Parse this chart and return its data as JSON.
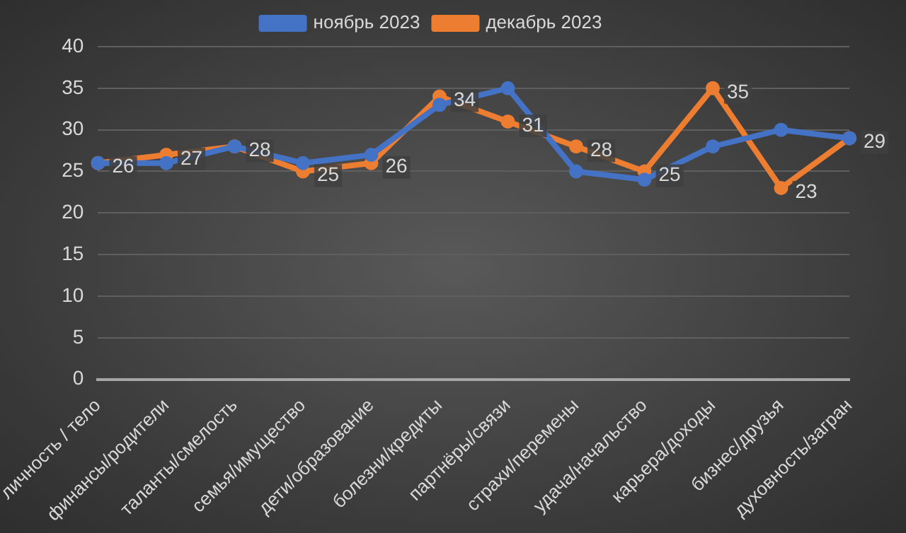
{
  "chart_data": {
    "type": "line",
    "categories": [
      "личность / тело",
      "финансы/родители",
      "таланты/смелость",
      "семья/имущество",
      "дети/образование",
      "болезни/кредиты",
      "партнёры/связи",
      "страхи/перемены",
      "удача/начальство",
      "карьера/доходы",
      "бизнес/друзья",
      "духовность/загран"
    ],
    "series": [
      {
        "name": "ноябрь 2023",
        "color": "#4472c4",
        "values": [
          26,
          26,
          28,
          26,
          27,
          33,
          35,
          25,
          24,
          28,
          30,
          29
        ]
      },
      {
        "name": "декабрь 2023",
        "color": "#ed7d31",
        "values": [
          26,
          27,
          28,
          25,
          26,
          34,
          31,
          28,
          25,
          35,
          23,
          29
        ],
        "value_labels": [
          "26",
          "27",
          "28",
          "25",
          "26",
          "34",
          "31",
          "28",
          "25",
          "35",
          "23",
          "29"
        ]
      }
    ],
    "ylim": [
      0,
      40
    ],
    "yticks": [
      0,
      5,
      10,
      15,
      20,
      25,
      30,
      35,
      40
    ],
    "grid": "y",
    "legend": "top",
    "marker": "circle",
    "line_style": "solid"
  }
}
